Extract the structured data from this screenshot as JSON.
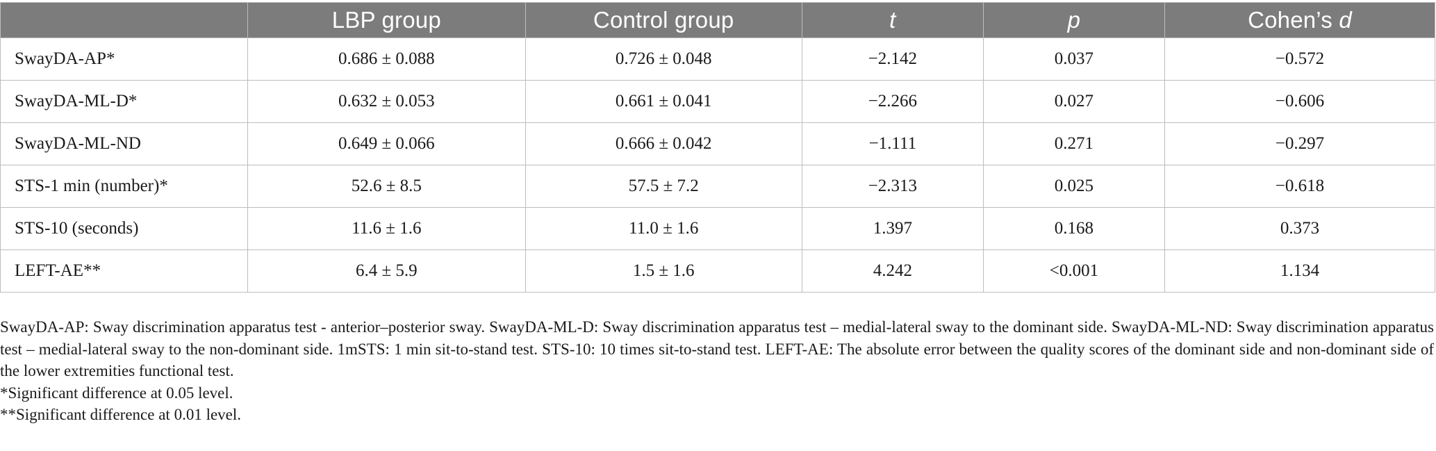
{
  "table": {
    "columns": [
      "",
      "LBP group",
      "Control group",
      "t",
      "p",
      "Cohen’s d"
    ],
    "rows": [
      {
        "label": "SwayDA-AP*",
        "lbp": "0.686 ± 0.088",
        "control": "0.726 ± 0.048",
        "t": "−2.142",
        "p": "0.037",
        "d": "−0.572"
      },
      {
        "label": "SwayDA-ML-D*",
        "lbp": "0.632 ± 0.053",
        "control": "0.661 ± 0.041",
        "t": "−2.266",
        "p": "0.027",
        "d": "−0.606"
      },
      {
        "label": "SwayDA-ML-ND",
        "lbp": "0.649 ± 0.066",
        "control": "0.666 ± 0.042",
        "t": "−1.111",
        "p": "0.271",
        "d": "−0.297"
      },
      {
        "label": "STS-1 min (number)*",
        "lbp": "52.6 ± 8.5",
        "control": "57.5 ± 7.2",
        "t": "−2.313",
        "p": "0.025",
        "d": "−0.618"
      },
      {
        "label": "STS-10 (seconds)",
        "lbp": "11.6 ± 1.6",
        "control": "11.0 ± 1.6",
        "t": "1.397",
        "p": "0.168",
        "d": "0.373"
      },
      {
        "label": "LEFT-AE**",
        "lbp": "6.4 ± 5.9",
        "control": "1.5 ± 1.6",
        "t": "4.242",
        "p": "<0.001",
        "d": "1.134"
      }
    ]
  },
  "footnotes": {
    "abbreviations": "SwayDA-AP: Sway discrimination apparatus test - anterior–posterior sway. SwayDA-ML-D: Sway discrimination apparatus test – medial-lateral sway to the dominant side. SwayDA-ML-ND: Sway discrimination apparatus test – medial-lateral sway to the non-dominant side. 1mSTS: 1 min sit-to-stand test. STS-10: 10 times sit-to-stand test. LEFT-AE: The absolute error between the quality scores of the dominant side and non-dominant side of the lower extremities functional test.",
    "sig05": "*Significant difference at 0.05 level.",
    "sig01": "**Significant difference at 0.01 level."
  }
}
